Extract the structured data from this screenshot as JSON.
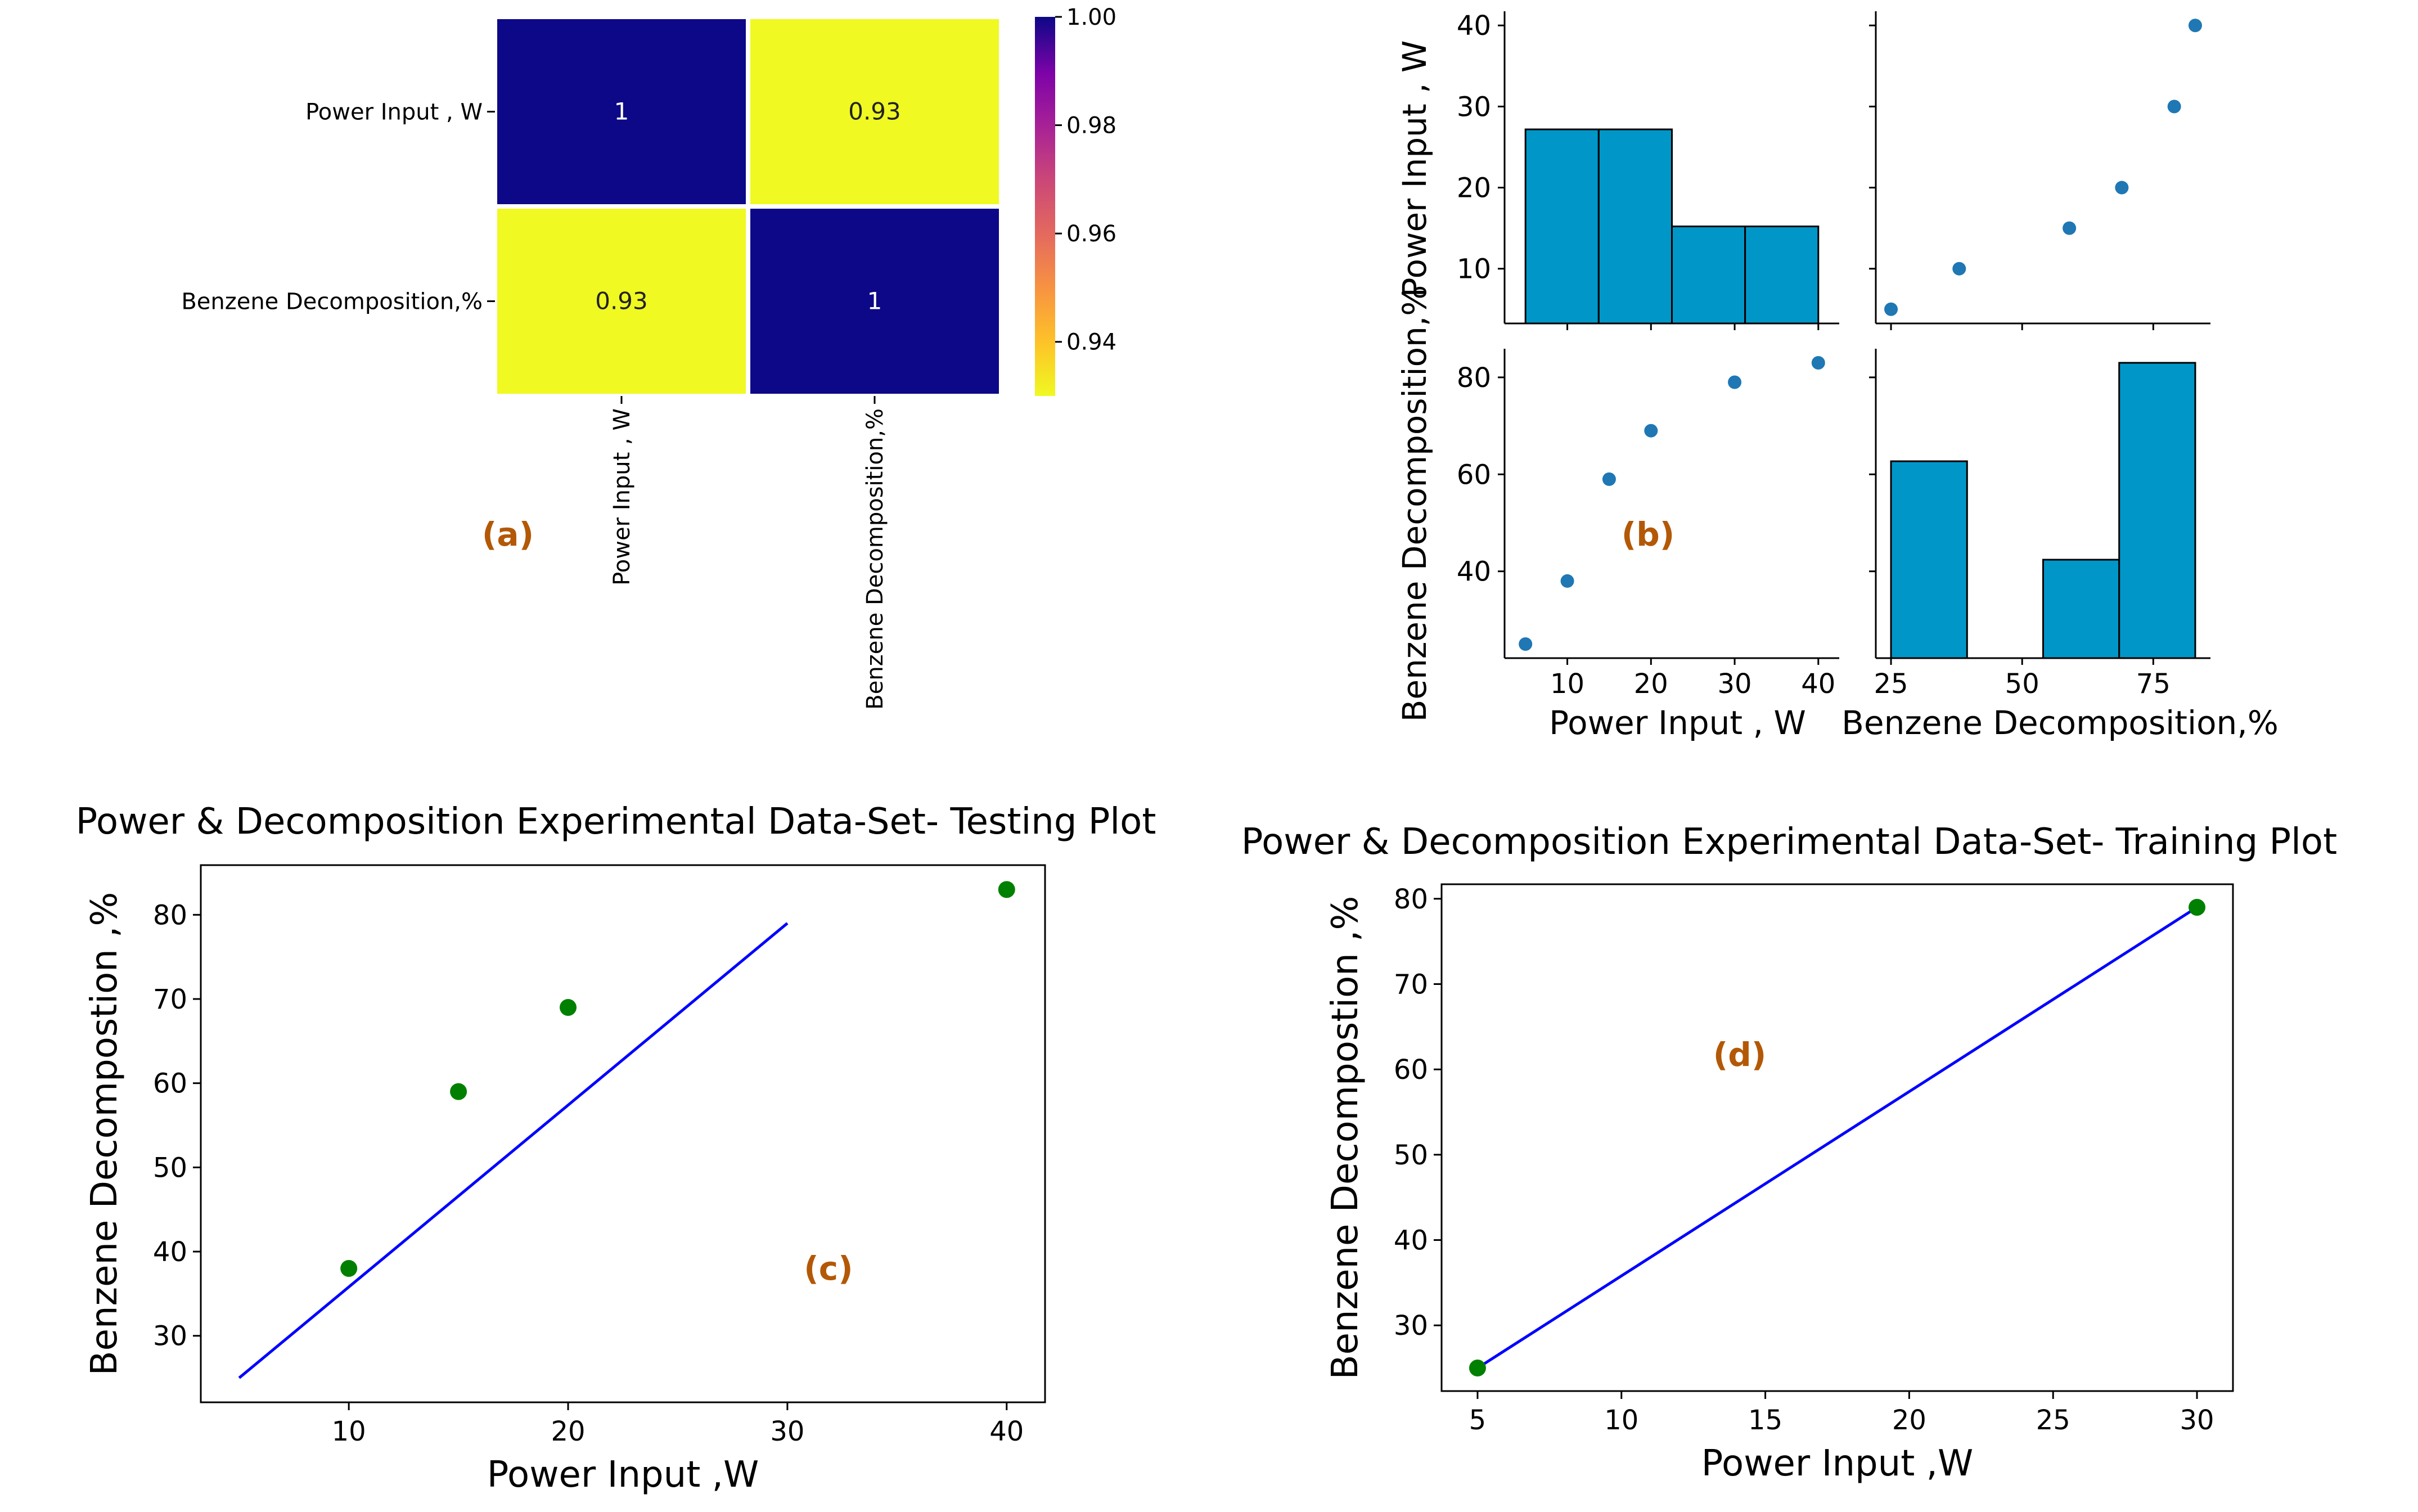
{
  "panel_tag_color": "#b35806",
  "panel_labels": {
    "a": "(a)",
    "b": "(b)",
    "c": "(c)",
    "d": "(d)"
  },
  "chart_data": [
    {
      "type": "heatmap",
      "panel": "(a)",
      "row_labels": [
        "Power Input , W",
        "Benzene Decomposition,%"
      ],
      "column_labels": [
        "Power Input , W",
        "Benzene Decomposition,%"
      ],
      "values": [
        [
          1,
          0.93
        ],
        [
          0.93,
          1
        ]
      ],
      "cell_labels": [
        [
          "1",
          "0.93"
        ],
        [
          "0.93",
          "1"
        ]
      ],
      "colormap": "plasma_r",
      "color_low": "#f0f921",
      "color_high": "#0d0887",
      "colorbar_range": [
        0.93,
        1.0
      ],
      "colorbar_ticks": [
        1.0,
        0.98,
        0.96,
        0.94
      ],
      "colorbar_tick_labels": [
        "1.00",
        "0.98",
        "0.96",
        "0.94"
      ],
      "grid_line_color": "#ffffff"
    },
    {
      "type": "pairplot",
      "panel": "(b)",
      "variables": [
        "Power Input , W",
        "Benzene Decomposition,%"
      ],
      "bar_color": "#0097c8",
      "point_color": "#1f77b4",
      "scatter": {
        "x": [
          5,
          10,
          15,
          20,
          30,
          40
        ],
        "y": [
          25,
          38,
          59,
          69,
          79,
          83
        ]
      },
      "hist_power": {
        "bin_edges": [
          5,
          13.75,
          22.5,
          31.25,
          40
        ],
        "counts": [
          2,
          2,
          1,
          1
        ]
      },
      "hist_benzene": {
        "bin_edges": [
          25,
          39.5,
          54,
          68.5,
          83
        ],
        "counts": [
          2,
          0,
          1,
          3
        ]
      },
      "power_axis": {
        "range": [
          2.5,
          42.5
        ],
        "ticks": [
          10,
          20,
          30,
          40
        ],
        "tick_labels": [
          "10",
          "20",
          "30",
          "40"
        ]
      },
      "benzene_axis": {
        "range": [
          22.1,
          85.9
        ],
        "ticks": [
          40,
          60,
          80
        ],
        "tick_labels": [
          "40",
          "60",
          "80"
        ],
        "x_ticks": [
          25,
          50,
          75
        ],
        "x_tick_labels": [
          "25",
          "50",
          "75"
        ]
      },
      "xlabels": [
        "Power Input , W",
        "Benzene Decomposition,%"
      ],
      "ylabels": [
        "Power Input , W",
        "Benzene Decomposition,%"
      ]
    },
    {
      "type": "scatter",
      "panel": "(c)",
      "title": "Power & Decomposition Experimental Data-Set- Testing Plot",
      "xlabel": "Power Input ,W",
      "ylabel": "Benzene Decompostion ,%",
      "points": {
        "x": [
          10,
          15,
          20,
          40
        ],
        "y": [
          38,
          59,
          69,
          83
        ]
      },
      "fit_line": {
        "x": [
          5,
          30
        ],
        "y": [
          25,
          79
        ]
      },
      "point_color": "#008000",
      "line_color": "#0000ff",
      "xlim": [
        3.25,
        41.75
      ],
      "ylim": [
        22.1,
        85.9
      ],
      "xticks": [
        10,
        20,
        30,
        40
      ],
      "yticks": [
        30,
        40,
        50,
        60,
        70,
        80
      ]
    },
    {
      "type": "scatter",
      "panel": "(d)",
      "title": "Power & Decomposition Experimental Data-Set- Training Plot",
      "xlabel": "Power Input ,W",
      "ylabel": "Benzene Decompostion ,%",
      "points": {
        "x": [
          5,
          30
        ],
        "y": [
          25,
          79
        ]
      },
      "fit_line": {
        "x": [
          5,
          30
        ],
        "y": [
          25,
          79
        ]
      },
      "point_color": "#008000",
      "line_color": "#0000ff",
      "xlim": [
        3.75,
        31.25
      ],
      "ylim": [
        22.3,
        81.7
      ],
      "xticks": [
        5,
        10,
        15,
        20,
        25,
        30
      ],
      "yticks": [
        30,
        40,
        50,
        60,
        70,
        80
      ]
    }
  ]
}
